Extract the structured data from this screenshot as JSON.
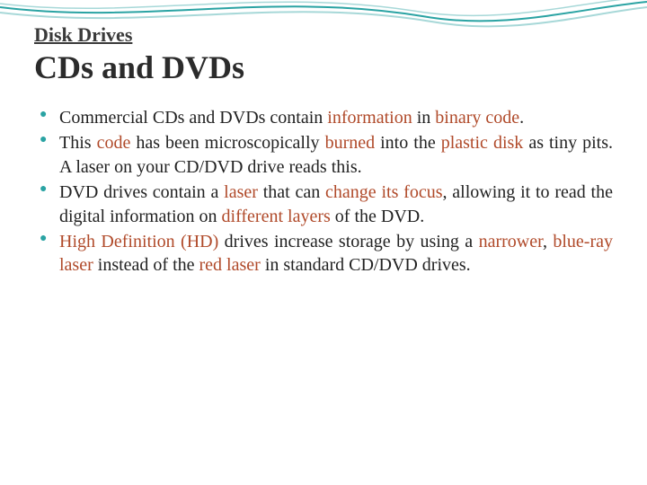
{
  "decoration": {
    "wave_stroke": "#2aa3a3",
    "wave_stroke_light": "#a7d8d8",
    "wave_width": 2
  },
  "overline": {
    "text": "Disk Drives",
    "color": "#3a3a3a",
    "fontsize": 22,
    "underline": true
  },
  "title": {
    "text": "CDs and DVDs",
    "color": "#2b2b2b",
    "fontsize": 36
  },
  "bullet_style": {
    "marker_color": "#2aa3a3",
    "body_fontsize": 20,
    "body_color": "#222222",
    "highlight_color": "#b04a2a",
    "text_align": "justify"
  },
  "bullets": [
    {
      "runs": [
        {
          "t": "Commercial CDs and DVDs contain ",
          "hl": false
        },
        {
          "t": "information",
          "hl": true
        },
        {
          "t": " in ",
          "hl": false
        },
        {
          "t": "binary code",
          "hl": true
        },
        {
          "t": ".",
          "hl": false
        }
      ]
    },
    {
      "runs": [
        {
          "t": "This ",
          "hl": false
        },
        {
          "t": "code",
          "hl": true
        },
        {
          "t": " has been microscopically ",
          "hl": false
        },
        {
          "t": "burned",
          "hl": true
        },
        {
          "t": " into the ",
          "hl": false
        },
        {
          "t": "plastic disk",
          "hl": true
        },
        {
          "t": " as tiny pits. A laser on your CD/DVD drive reads this.",
          "hl": false
        }
      ]
    },
    {
      "runs": [
        {
          "t": "DVD drives contain a ",
          "hl": false
        },
        {
          "t": "laser",
          "hl": true
        },
        {
          "t": " that can ",
          "hl": false
        },
        {
          "t": "change its focus",
          "hl": true
        },
        {
          "t": ", allowing it to read the digital information on ",
          "hl": false
        },
        {
          "t": "different layers",
          "hl": true
        },
        {
          "t": " of the DVD.",
          "hl": false
        }
      ]
    },
    {
      "runs": [
        {
          "t": "High Definition (HD)",
          "hl": true
        },
        {
          "t": " drives increase storage by using a ",
          "hl": false
        },
        {
          "t": "narrower",
          "hl": true
        },
        {
          "t": ", ",
          "hl": false
        },
        {
          "t": "blue-ray laser",
          "hl": true
        },
        {
          "t": " instead of the ",
          "hl": false
        },
        {
          "t": "red laser",
          "hl": true
        },
        {
          "t": " in standard CD/DVD drives.",
          "hl": false
        }
      ]
    }
  ]
}
